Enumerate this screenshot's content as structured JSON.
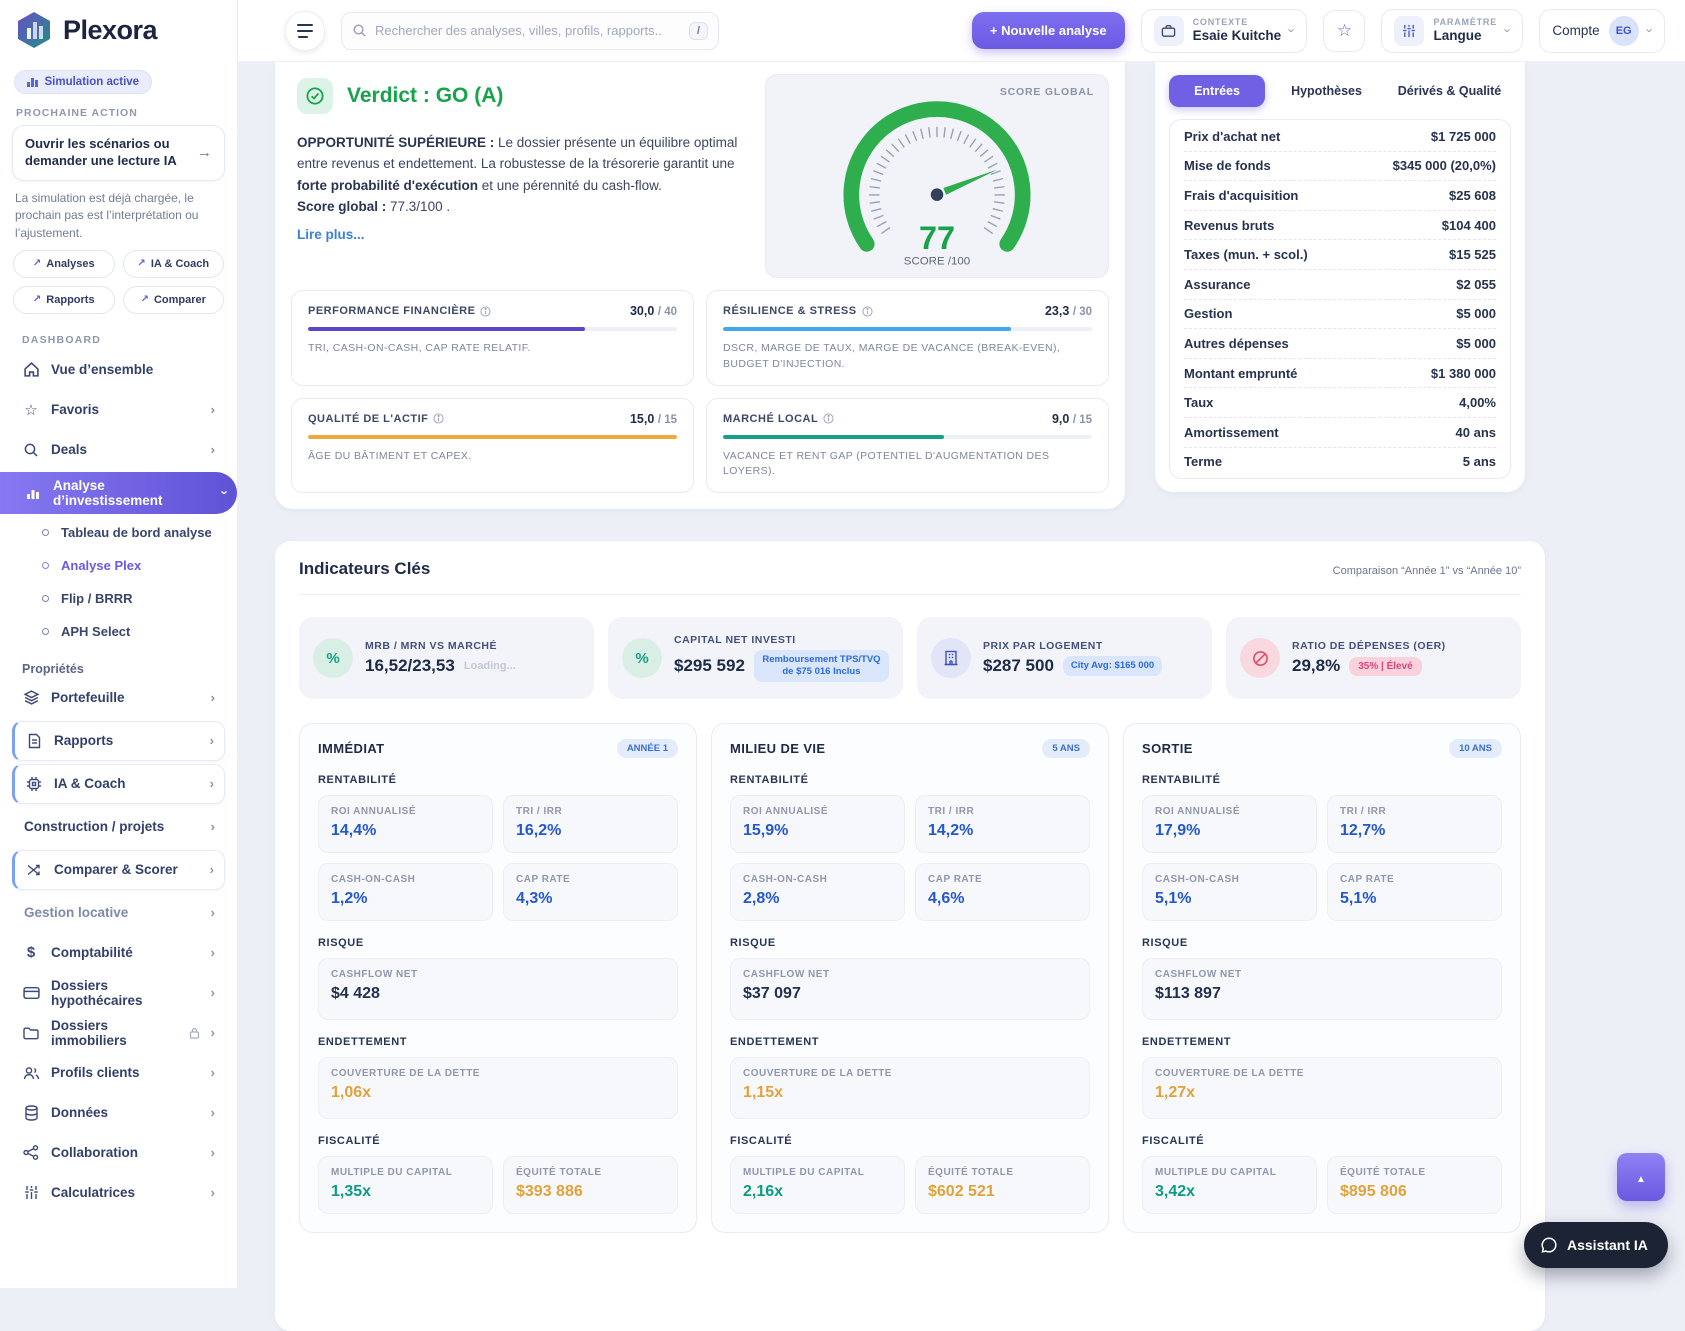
{
  "brand": {
    "name": "Plexora"
  },
  "header": {
    "search_placeholder": "Rechercher des analyses, villes, profils, rapports..",
    "search_shortcut": "/",
    "new_analysis_label": "+ Nouvelle analyse",
    "context_label": "CONTEXTE",
    "context_value": "Esaie Kuitche",
    "param_label": "PARAMÈTRE",
    "param_value": "Langue",
    "account_label": "Compte",
    "account_initials": "EG"
  },
  "sidebar": {
    "simulation_badge": "Simulation active",
    "next_action_label": "PROCHAINE ACTION",
    "next_action_title": "Ouvrir les scénarios ou demander une lecture IA",
    "next_action_desc": "La simulation est déjà chargée, le prochain pas est l’interprétation ou l’ajustement.",
    "quick_links": [
      "Analyses",
      "IA & Coach",
      "Rapports",
      "Comparer"
    ],
    "section_dashboard": "DASHBOARD",
    "section_proprietes": "Propriétés",
    "nav": {
      "overview": "Vue d’ensemble",
      "favoris": "Favoris",
      "deals": "Deals",
      "analyse": "Analyse d’investissement",
      "subs": [
        "Tableau de bord analyse",
        "Analyse Plex",
        "Flip / BRRR",
        "APH Select"
      ],
      "portefeuille": "Portefeuille",
      "rapports": "Rapports",
      "ia_coach": "IA & Coach",
      "construction": "Construction / projets",
      "comparer": "Comparer & Scorer",
      "gestion": "Gestion locative",
      "comptabilite": "Comptabilité",
      "hypothecaires": "Dossiers hypothécaires",
      "immobiliers": "Dossiers immobiliers",
      "profils": "Profils clients",
      "donnees": "Données",
      "collaboration": "Collaboration",
      "calculatrices": "Calculatrices"
    }
  },
  "verdict": {
    "title": "Verdict : GO (A)",
    "p1_bold": "OPPORTUNITÉ SUPÉRIEURE : ",
    "p1": "Le dossier présente un équilibre optimal entre revenus et endettement. La robustesse de la trésorerie garantit une ",
    "p2_bold": "forte probabilité d'exécution",
    "p2": " et une pérennité du cash-flow.",
    "score_label": "Score global :",
    "score_text": " 77.3/100 .",
    "read_more": "Lire plus..."
  },
  "gauge": {
    "panel_label": "SCORE GLOBAL",
    "score": 77,
    "max": 100,
    "score_sub": "SCORE /100",
    "arc_color": "#2fae4e"
  },
  "score_breakdown": [
    {
      "label": "PERFORMANCE FINANCIÈRE",
      "value": "30,0",
      "max": "/ 40",
      "pct": 75,
      "color": "#5847c8",
      "desc": "TRI, CASH-ON-CASH, CAP RATE RELATIF."
    },
    {
      "label": "RÉSILIENCE & STRESS",
      "value": "23,3",
      "max": "/ 30",
      "pct": 78,
      "color": "#41a8ea",
      "desc": "DSCR, MARGE DE TAUX, MARGE DE VACANCE (BREAK-EVEN), BUDGET D'INJECTION."
    },
    {
      "label": "QUALITÉ DE L'ACTIF",
      "value": "15,0",
      "max": "/ 15",
      "pct": 100,
      "color": "#f2a93b",
      "desc": "ÂGE DU BÂTIMENT ET CAPEX."
    },
    {
      "label": "MARCHÉ LOCAL",
      "value": "9,0",
      "max": "/ 15",
      "pct": 60,
      "color": "#16a085",
      "desc": "VACANCE ET RENT GAP (POTENTIEL D'AUGMENTATION DES LOYERS)."
    }
  ],
  "entries_panel": {
    "tabs": [
      "Entrées",
      "Hypothèses",
      "Dérivés & Qualité"
    ],
    "rows": [
      {
        "label": "Prix d'achat net",
        "value": "$1 725 000"
      },
      {
        "label": "Mise de fonds",
        "value": "$345 000 (20,0%)"
      },
      {
        "label": "Frais d'acquisition",
        "value": "$25 608"
      },
      {
        "label": "Revenus bruts",
        "value": "$104 400"
      },
      {
        "label": "Taxes (mun. + scol.)",
        "value": "$15 525"
      },
      {
        "label": "Assurance",
        "value": "$2 055"
      },
      {
        "label": "Gestion",
        "value": "$5 000"
      },
      {
        "label": "Autres dépenses",
        "value": "$5 000"
      },
      {
        "label": "Montant emprunté",
        "value": "$1 380 000"
      },
      {
        "label": "Taux",
        "value": "4,00%"
      },
      {
        "label": "Amortissement",
        "value": "40 ans"
      },
      {
        "label": "Terme",
        "value": "5 ans"
      }
    ]
  },
  "kpi": {
    "title": "Indicateurs Clés",
    "comparison": "Comparaison “Année 1” vs “Année 10”",
    "cards": [
      {
        "label": "MRB / MRN VS MARCHÉ",
        "value": "16,52/23,53",
        "note": "Loading..."
      },
      {
        "label": "CAPITAL NET INVESTI",
        "value": "$295 592",
        "badge": "Remboursement TPS/TVQ de $75 016 Inclus"
      },
      {
        "label": "PRIX PAR LOGEMENT",
        "value": "$287 500",
        "badge": "City Avg: $165 000"
      },
      {
        "label": "RATIO DE DÉPENSES (OER)",
        "value": "29,8%",
        "badge": "35% | Élevé"
      }
    ]
  },
  "periods": [
    {
      "title": "IMMÉDIAT",
      "badge": "ANNÉE 1",
      "sections": {
        "rentabilite": "RENTABILITÉ",
        "risque": "RISQUE",
        "endettement": "ENDETTEMENT",
        "fiscalite": "FISCALITÉ"
      },
      "roi": {
        "label": "ROI ANNUALISÉ",
        "value": "14,4%"
      },
      "tri": {
        "label": "TRI / IRR",
        "value": "16,2%"
      },
      "coc": {
        "label": "CASH-ON-CASH",
        "value": "1,2%"
      },
      "cap": {
        "label": "CAP RATE",
        "value": "4,3%"
      },
      "cashflow": {
        "label": "CASHFLOW NET",
        "value": "$4 428"
      },
      "couverture": {
        "label": "COUVERTURE DE LA DETTE",
        "value": "1,06x"
      },
      "multiple": {
        "label": "MULTIPLE DU CAPITAL",
        "value": "1,35x"
      },
      "equite": {
        "label": "ÉQUITÉ TOTALE",
        "value": "$393 886"
      }
    },
    {
      "title": "MILIEU DE VIE",
      "badge": "5 ANS",
      "sections": {
        "rentabilite": "RENTABILITÉ",
        "risque": "RISQUE",
        "endettement": "ENDETTEMENT",
        "fiscalite": "FISCALITÉ"
      },
      "roi": {
        "label": "ROI ANNUALISÉ",
        "value": "15,9%"
      },
      "tri": {
        "label": "TRI / IRR",
        "value": "14,2%"
      },
      "coc": {
        "label": "CASH-ON-CASH",
        "value": "2,8%"
      },
      "cap": {
        "label": "CAP RATE",
        "value": "4,6%"
      },
      "cashflow": {
        "label": "CASHFLOW NET",
        "value": "$37 097"
      },
      "couverture": {
        "label": "COUVERTURE DE LA DETTE",
        "value": "1,15x"
      },
      "multiple": {
        "label": "MULTIPLE DU CAPITAL",
        "value": "2,16x"
      },
      "equite": {
        "label": "ÉQUITÉ TOTALE",
        "value": "$602 521"
      }
    },
    {
      "title": "SORTIE",
      "badge": "10 ANS",
      "sections": {
        "rentabilite": "RENTABILITÉ",
        "risque": "RISQUE",
        "endettement": "ENDETTEMENT",
        "fiscalite": "FISCALITÉ"
      },
      "roi": {
        "label": "ROI ANNUALISÉ",
        "value": "17,9%"
      },
      "tri": {
        "label": "TRI / IRR",
        "value": "12,7%"
      },
      "coc": {
        "label": "CASH-ON-CASH",
        "value": "5,1%"
      },
      "cap": {
        "label": "CAP RATE",
        "value": "5,1%"
      },
      "cashflow": {
        "label": "CASHFLOW NET",
        "value": "$113 897"
      },
      "couverture": {
        "label": "COUVERTURE DE LA DETTE",
        "value": "1,27x"
      },
      "multiple": {
        "label": "MULTIPLE DU CAPITAL",
        "value": "3,42x"
      },
      "equite": {
        "label": "ÉQUITÉ TOTALE",
        "value": "$895 806"
      }
    }
  ],
  "assistant_label": "Assistant IA"
}
